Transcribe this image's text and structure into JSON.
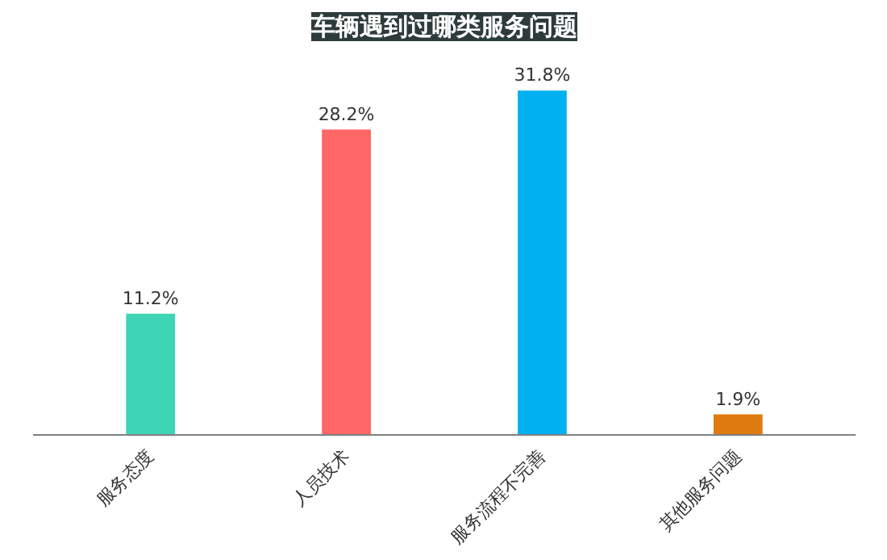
{
  "chart_data": {
    "type": "bar",
    "title": "车辆遇到过哪类服务问题",
    "categories": [
      "服务态度",
      "人员技术",
      "服务流程不完善",
      "其他服务问题"
    ],
    "values": [
      11.2,
      28.2,
      31.8,
      1.9
    ],
    "value_labels": [
      "11.2%",
      "28.2%",
      "31.8%",
      "1.9%"
    ],
    "colors": [
      "#3dd5b5",
      "#ff6666",
      "#00b0f0",
      "#e07b10"
    ],
    "grid": false
  }
}
